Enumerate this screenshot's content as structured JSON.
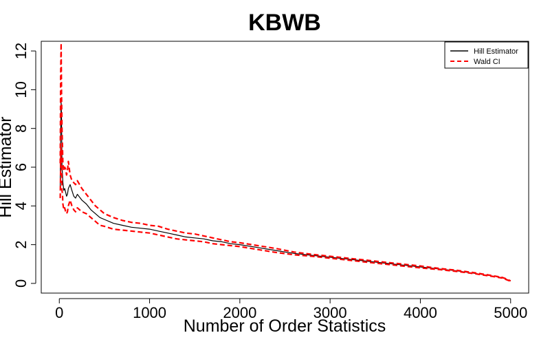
{
  "chart_data": {
    "type": "line",
    "title": "KBWB",
    "xlabel": "Number of Order Statistics",
    "ylabel": "Hill Estimator",
    "xlim": [
      -200,
      5200
    ],
    "ylim": [
      -0.5,
      12.5
    ],
    "xticks": [
      0,
      1000,
      2000,
      3000,
      4000,
      5000
    ],
    "xtick_labels": [
      "0",
      "1000",
      "2000",
      "3000",
      "4000",
      "5000"
    ],
    "yticks": [
      0,
      2,
      4,
      6,
      8,
      10,
      12
    ],
    "ytick_labels": [
      "0",
      "2",
      "4",
      "6",
      "8",
      "10",
      "12"
    ],
    "grid": false,
    "legend": {
      "position": "top-right",
      "entries": [
        {
          "label": "Hill Estimator",
          "color": "#000000",
          "style": "solid"
        },
        {
          "label": "Wald CI",
          "color": "#ff0000",
          "style": "dashed"
        }
      ]
    },
    "series": [
      {
        "name": "Hill Estimator",
        "color": "#000000",
        "style": "solid",
        "x": [
          10,
          15,
          20,
          25,
          30,
          35,
          40,
          50,
          60,
          70,
          80,
          90,
          100,
          120,
          140,
          160,
          180,
          200,
          250,
          300,
          350,
          400,
          450,
          500,
          600,
          700,
          800,
          900,
          1000,
          1100,
          1200,
          1300,
          1400,
          1500,
          1600,
          1700,
          1800,
          1900,
          2000,
          2200,
          2400,
          2600,
          2800,
          3000,
          3200,
          3400,
          3600,
          3800,
          4000,
          4200,
          4400,
          4600,
          4800,
          4900,
          4950,
          5000
        ],
        "y": [
          5.0,
          7.5,
          9.4,
          8.6,
          6.0,
          5.6,
          5.2,
          4.8,
          4.9,
          4.7,
          4.5,
          4.6,
          4.9,
          5.1,
          4.8,
          4.5,
          4.4,
          4.6,
          4.3,
          4.1,
          3.8,
          3.6,
          3.4,
          3.3,
          3.1,
          3.0,
          2.9,
          2.85,
          2.8,
          2.7,
          2.6,
          2.5,
          2.4,
          2.35,
          2.3,
          2.2,
          2.15,
          2.05,
          2.0,
          1.85,
          1.7,
          1.55,
          1.45,
          1.35,
          1.25,
          1.15,
          1.05,
          0.95,
          0.85,
          0.75,
          0.65,
          0.52,
          0.38,
          0.3,
          0.22,
          0.12
        ]
      },
      {
        "name": "Wald CI",
        "color": "#ff0000",
        "style": "dashed",
        "x": [
          10,
          15,
          20,
          25,
          30,
          35,
          40,
          50,
          60,
          70,
          80,
          90,
          100,
          120,
          140,
          160,
          180,
          200,
          250,
          300,
          350,
          400,
          450,
          500,
          600,
          700,
          800,
          900,
          1000,
          1100,
          1200,
          1300,
          1400,
          1500,
          1600,
          1700,
          1800,
          1900,
          2000,
          2200,
          2400,
          2600,
          2800,
          3000,
          3200,
          3400,
          3600,
          3800,
          4000,
          4200,
          4400,
          4600,
          4800,
          4900,
          4950,
          5000
        ],
        "y": [
          6.2,
          10.5,
          12.4,
          9.8,
          8.0,
          7.0,
          6.2,
          5.8,
          6.0,
          5.9,
          5.6,
          5.8,
          6.3,
          5.6,
          5.3,
          5.2,
          5.1,
          5.3,
          4.9,
          4.6,
          4.3,
          4.0,
          3.8,
          3.6,
          3.4,
          3.25,
          3.15,
          3.1,
          3.0,
          2.95,
          2.8,
          2.7,
          2.6,
          2.55,
          2.45,
          2.35,
          2.25,
          2.15,
          2.1,
          1.95,
          1.8,
          1.62,
          1.5,
          1.4,
          1.3,
          1.2,
          1.1,
          1.0,
          0.9,
          0.78,
          0.68,
          0.55,
          0.4,
          0.32,
          0.24,
          0.13
        ]
      },
      {
        "name": "",
        "color": "#ff0000",
        "style": "dashed",
        "x": [
          10,
          15,
          20,
          25,
          30,
          35,
          40,
          50,
          60,
          70,
          80,
          90,
          100,
          120,
          140,
          160,
          180,
          200,
          250,
          300,
          350,
          400,
          450,
          500,
          600,
          700,
          800,
          900,
          1000,
          1100,
          1200,
          1300,
          1400,
          1500,
          1600,
          1700,
          1800,
          1900,
          2000,
          2200,
          2400,
          2600,
          2800,
          3000,
          3200,
          3400,
          3600,
          3800,
          4000,
          4200,
          4400,
          4600,
          4800,
          4900,
          4950,
          5000
        ],
        "y": [
          4.4,
          6.0,
          7.0,
          6.3,
          4.8,
          4.6,
          4.1,
          3.8,
          3.9,
          3.7,
          3.6,
          3.7,
          4.0,
          4.3,
          4.0,
          3.8,
          3.7,
          3.9,
          3.7,
          3.6,
          3.4,
          3.2,
          3.0,
          2.95,
          2.8,
          2.75,
          2.7,
          2.65,
          2.6,
          2.5,
          2.4,
          2.3,
          2.25,
          2.2,
          2.15,
          2.05,
          2.0,
          1.95,
          1.9,
          1.75,
          1.6,
          1.48,
          1.4,
          1.3,
          1.2,
          1.1,
          1.0,
          0.9,
          0.8,
          0.72,
          0.62,
          0.5,
          0.36,
          0.28,
          0.2,
          0.11
        ]
      }
    ]
  }
}
